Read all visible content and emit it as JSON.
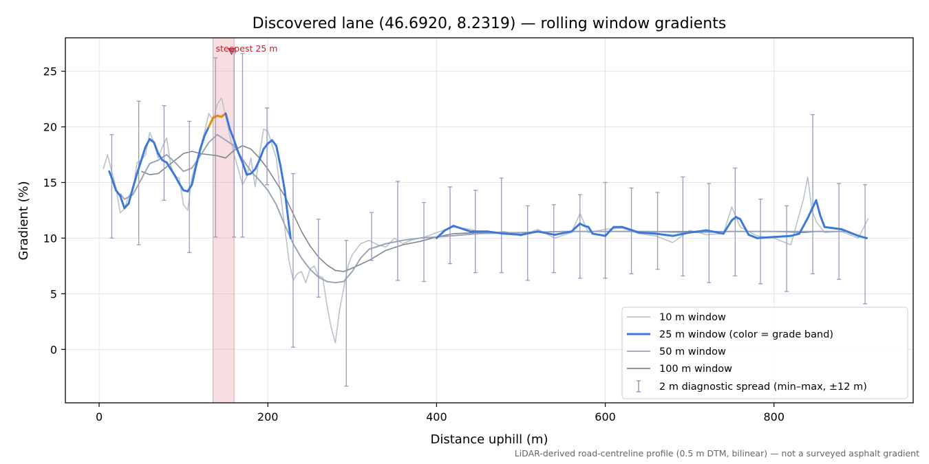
{
  "chart_data": {
    "type": "line",
    "title": "Discovered lane (46.6920, 8.2319) — rolling window gradients",
    "xlabel": "Distance uphill (m)",
    "ylabel": "Gradient (%)",
    "xlim": [
      -40,
      965
    ],
    "ylim": [
      -4.8,
      28.0
    ],
    "xticks": [
      0,
      200,
      400,
      600,
      800
    ],
    "yticks": [
      0,
      5,
      10,
      15,
      20,
      25
    ],
    "grid": true,
    "legend_position": "lower-right",
    "footnote": "LiDAR-derived road-centreline profile (0.5 m DTM, bilinear) — not a surveyed asphalt gradient",
    "highlight": {
      "label": "steepest 25 m",
      "x_start": 135,
      "x_end": 160,
      "marker": [
        157,
        26.8
      ],
      "color": "#e8a0a8"
    },
    "colors": {
      "w10": "#b9c2cd",
      "w25": "#3b78d8",
      "w25_steep": "#e0890e",
      "w50": "#98a5b8",
      "w100": "#7d8593",
      "errorbar": "#9a98bf"
    },
    "series": [
      {
        "name": "10 m window",
        "x": [
          5,
          10,
          15,
          20,
          25,
          30,
          35,
          40,
          45,
          50,
          55,
          60,
          65,
          70,
          75,
          80,
          85,
          90,
          95,
          100,
          105,
          110,
          115,
          120,
          125,
          130,
          135,
          140,
          145,
          150,
          155,
          160,
          165,
          170,
          175,
          180,
          185,
          190,
          195,
          200,
          205,
          210,
          215,
          220,
          225,
          230,
          235,
          240,
          245,
          250,
          255,
          260,
          265,
          270,
          275,
          280,
          285,
          290,
          295,
          300,
          310,
          320,
          330,
          340,
          350,
          360,
          370,
          380,
          390,
          400,
          420,
          440,
          460,
          480,
          500,
          520,
          540,
          560,
          570,
          580,
          600,
          620,
          640,
          660,
          680,
          700,
          720,
          740,
          750,
          760,
          780,
          800,
          820,
          835,
          840,
          845,
          850,
          860,
          880,
          900,
          912
        ],
        "values": [
          16.2,
          17.5,
          16.0,
          14.5,
          12.3,
          12.6,
          13.8,
          14.2,
          16.8,
          17.0,
          17.5,
          19.5,
          18.6,
          17.2,
          18.2,
          19.0,
          16.5,
          15.5,
          15.4,
          13.0,
          12.5,
          15.5,
          16.8,
          18.2,
          19.5,
          21.2,
          20.6,
          22.0,
          22.6,
          21.0,
          19.2,
          17.5,
          16.2,
          14.8,
          15.5,
          17.2,
          14.6,
          17.5,
          19.8,
          19.6,
          18.4,
          17.2,
          14.0,
          11.0,
          8.0,
          6.2,
          6.8,
          7.0,
          6.0,
          7.2,
          7.5,
          6.6,
          6.5,
          4.0,
          2.0,
          0.6,
          3.5,
          5.5,
          7.5,
          8.5,
          9.5,
          9.8,
          9.4,
          9.2,
          10.0,
          9.5,
          9.8,
          10.0,
          10.2,
          10.5,
          11.0,
          10.8,
          10.4,
          10.6,
          10.2,
          10.8,
          10.0,
          10.5,
          12.2,
          10.5,
          10.8,
          10.9,
          10.4,
          10.2,
          9.6,
          10.7,
          10.3,
          10.4,
          12.8,
          11.0,
          10.2,
          10.0,
          9.4,
          13.5,
          15.5,
          12.5,
          11.5,
          10.5,
          10.6,
          10.0,
          11.8
        ]
      },
      {
        "name": "25 m window (color = grade band)",
        "x": [
          12,
          15,
          20,
          25,
          30,
          35,
          40,
          45,
          50,
          55,
          60,
          65,
          70,
          75,
          80,
          85,
          90,
          95,
          100,
          105,
          110,
          115,
          120,
          125,
          130,
          135,
          140,
          145,
          150,
          155,
          160,
          165,
          170,
          175,
          180,
          185,
          190,
          195,
          200,
          205,
          210,
          215,
          220,
          225,
          227,
          400,
          410,
          420,
          440,
          460,
          480,
          500,
          520,
          540,
          560,
          570,
          575,
          580,
          585,
          600,
          610,
          620,
          640,
          660,
          680,
          700,
          720,
          740,
          750,
          755,
          760,
          770,
          780,
          800,
          820,
          830,
          840,
          845,
          850,
          855,
          860,
          880,
          900,
          910
        ],
        "values": [
          16.0,
          15.4,
          14.3,
          13.8,
          12.7,
          13.1,
          14.5,
          15.8,
          17.0,
          18.2,
          18.9,
          18.6,
          17.6,
          17.0,
          16.8,
          16.2,
          15.6,
          14.9,
          14.3,
          14.2,
          14.8,
          16.5,
          18.0,
          19.2,
          20.0,
          20.8,
          21.0,
          20.9,
          21.2,
          19.8,
          18.8,
          17.7,
          16.8,
          15.7,
          15.8,
          16.2,
          17.0,
          18.0,
          18.5,
          18.8,
          18.3,
          16.5,
          14.3,
          11.2,
          10.0,
          10.0,
          10.7,
          11.1,
          10.6,
          10.6,
          10.4,
          10.3,
          10.6,
          10.3,
          10.6,
          11.3,
          11.1,
          11.0,
          10.4,
          10.2,
          11.0,
          11.0,
          10.5,
          10.4,
          10.2,
          10.5,
          10.7,
          10.4,
          11.6,
          11.9,
          11.7,
          10.3,
          10.0,
          10.1,
          10.2,
          10.4,
          11.8,
          12.6,
          13.4,
          12.0,
          11.0,
          10.8,
          10.2,
          10.0
        ]
      },
      {
        "name": "50 m window",
        "x": [
          25,
          30,
          40,
          50,
          60,
          70,
          80,
          90,
          100,
          110,
          120,
          130,
          140,
          150,
          160,
          170,
          180,
          190,
          200,
          210,
          220,
          230,
          240,
          250,
          260,
          270,
          280,
          290,
          300,
          310,
          320,
          340,
          360,
          380,
          400,
          450,
          500,
          550,
          600,
          650,
          700,
          750,
          800,
          850,
          885
        ],
        "values": [
          14.0,
          13.5,
          13.9,
          15.3,
          16.7,
          17.0,
          17.5,
          16.8,
          16.0,
          16.3,
          17.4,
          18.6,
          19.3,
          18.8,
          18.3,
          17.1,
          16.0,
          15.2,
          14.3,
          13.0,
          11.2,
          9.5,
          8.2,
          7.2,
          6.5,
          6.1,
          6.0,
          6.1,
          7.0,
          8.2,
          9.0,
          9.5,
          9.8,
          10.0,
          10.1,
          10.4,
          10.5,
          10.6,
          10.6,
          10.6,
          10.5,
          10.6,
          10.6,
          10.6,
          10.6
        ]
      },
      {
        "name": "100 m window",
        "x": [
          50,
          60,
          70,
          80,
          90,
          100,
          110,
          120,
          130,
          140,
          150,
          160,
          170,
          180,
          190,
          200,
          210,
          220,
          230,
          240,
          250,
          260,
          270,
          280,
          290,
          300,
          320,
          340,
          360,
          380,
          400,
          420,
          450,
          500,
          550,
          600,
          650,
          700,
          750,
          800,
          835,
          850,
          860
        ],
        "values": [
          16.0,
          15.7,
          15.8,
          16.4,
          17.0,
          17.6,
          17.8,
          17.6,
          17.5,
          17.4,
          17.2,
          17.9,
          18.3,
          18.0,
          17.2,
          16.2,
          15.0,
          13.8,
          12.2,
          10.6,
          9.3,
          8.3,
          7.6,
          7.1,
          7.0,
          7.3,
          8.0,
          8.9,
          9.4,
          9.7,
          10.1,
          10.4,
          10.5,
          10.5,
          10.6,
          10.6,
          10.6,
          10.6,
          10.6,
          10.6,
          10.5,
          10.6,
          10.6
        ]
      },
      {
        "name": "2 m diagnostic spread (min–max, ±12 m)",
        "type": "errorbar",
        "x": [
          15,
          47,
          77,
          107,
          138,
          160,
          170,
          199,
          230,
          260,
          293,
          323,
          354,
          385,
          416,
          446,
          477,
          508,
          539,
          570,
          600,
          631,
          662,
          692,
          723,
          754,
          784,
          815,
          846,
          877,
          908
        ],
        "low": [
          10.0,
          9.4,
          13.4,
          8.7,
          10.1,
          10.1,
          10.1,
          14.8,
          0.2,
          4.7,
          -3.3,
          8.0,
          6.2,
          6.1,
          7.7,
          6.9,
          6.9,
          6.2,
          6.9,
          6.4,
          6.4,
          6.8,
          7.2,
          6.6,
          6.0,
          6.6,
          5.9,
          5.2,
          6.8,
          6.3,
          4.1
        ],
        "high": [
          19.3,
          22.3,
          21.9,
          20.5,
          26.2,
          26.8,
          26.6,
          21.7,
          15.8,
          11.7,
          9.8,
          12.3,
          15.1,
          13.2,
          14.6,
          14.3,
          15.4,
          12.9,
          13.0,
          13.9,
          15.0,
          14.5,
          14.1,
          15.5,
          14.9,
          16.3,
          13.5,
          12.9,
          21.1,
          14.9,
          14.8
        ]
      }
    ]
  }
}
